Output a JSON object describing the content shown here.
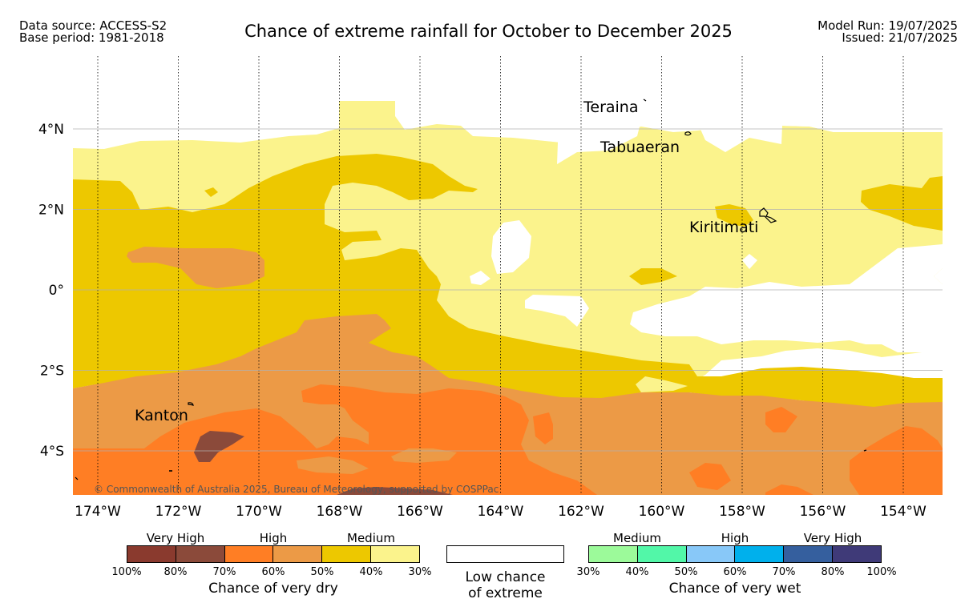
{
  "header": {
    "data_source": "Data source: ACCESS-S2",
    "base_period": "Base period: 1981-2018",
    "title": "Chance of extreme rainfall for October to December 2025",
    "model_run": "Model Run: 19/07/2025",
    "issued": "Issued: 21/07/2025"
  },
  "map": {
    "lon_labels": [
      "174°W",
      "172°W",
      "170°W",
      "168°W",
      "166°W",
      "164°W",
      "162°W",
      "160°W",
      "158°W",
      "156°W",
      "154°W"
    ],
    "lat_labels": [
      "4°N",
      "2°N",
      "0°",
      "2°S",
      "4°S"
    ],
    "places": [
      "Teraina",
      "Tabuaeran",
      "Kiritimati",
      "Kanton"
    ],
    "copyright": "© Commonwealth of Australia 2025, Bureau of Meteorology, supported by COSPPac",
    "colors": {
      "very_high_dry_1": "#8a3a2e",
      "very_high_dry_2": "#8b4a3a",
      "high_dry_1": "#ff7e24",
      "high_dry_2": "#ec9a46",
      "medium_dry_1": "#edc800",
      "medium_dry_2": "#fbf38c",
      "low": "#ffffff"
    }
  },
  "legend": {
    "dry": {
      "categories": [
        "Very High",
        "High",
        "Medium"
      ],
      "ticks": [
        "100%",
        "80%",
        "70%",
        "60%",
        "50%",
        "40%",
        "30%"
      ],
      "colors": [
        "#8a3a2e",
        "#8b4a3a",
        "#ff7e24",
        "#ec9a46",
        "#edc800",
        "#fbf38c"
      ],
      "caption": "Chance of very dry"
    },
    "low": {
      "caption_line1": "Low chance",
      "caption_line2": "of extreme"
    },
    "wet": {
      "categories": [
        "Medium",
        "High",
        "Very High"
      ],
      "ticks": [
        "30%",
        "40%",
        "50%",
        "60%",
        "70%",
        "80%",
        "100%"
      ],
      "colors": [
        "#9cfa9a",
        "#52f7a8",
        "#88c8f8",
        "#00b0ec",
        "#355f9e",
        "#3f3a78"
      ],
      "caption": "Chance of very wet"
    }
  }
}
